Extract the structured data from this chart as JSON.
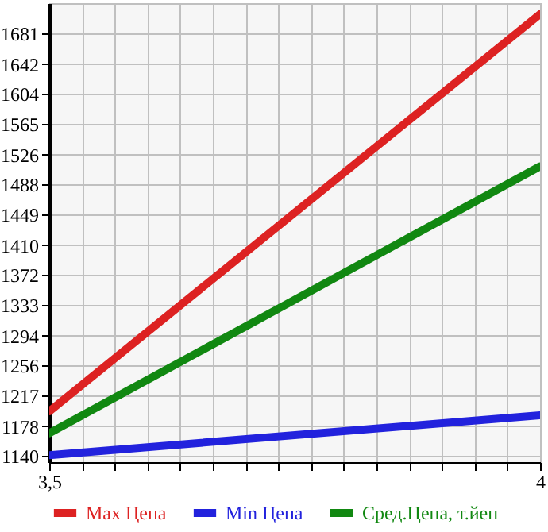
{
  "chart_data": {
    "type": "line",
    "x": [
      3.5,
      4
    ],
    "series": [
      {
        "name": "Max Цена",
        "color": "#dd2222",
        "values": [
          1197,
          1706
        ]
      },
      {
        "name": "Min Цена",
        "color": "#2222dd",
        "values": [
          1141,
          1192
        ]
      },
      {
        "name": "Сред.Цена, т.йен",
        "color": "#118811",
        "values": [
          1169,
          1511
        ]
      }
    ],
    "xlim": [
      3.5,
      4
    ],
    "xticks": [
      {
        "value": 3.5,
        "label": "3,5"
      },
      {
        "value": 3.5333,
        "label": null
      },
      {
        "value": 3.5667,
        "label": null
      },
      {
        "value": 3.6,
        "label": null
      },
      {
        "value": 3.6333,
        "label": null
      },
      {
        "value": 3.6667,
        "label": null
      },
      {
        "value": 3.7,
        "label": null
      },
      {
        "value": 3.7333,
        "label": null
      },
      {
        "value": 3.7667,
        "label": null
      },
      {
        "value": 3.8,
        "label": null
      },
      {
        "value": 3.8333,
        "label": null
      },
      {
        "value": 3.8667,
        "label": null
      },
      {
        "value": 3.9,
        "label": null
      },
      {
        "value": 3.9333,
        "label": null
      },
      {
        "value": 3.9667,
        "label": null
      },
      {
        "value": 4,
        "label": "4"
      }
    ],
    "ylim": [
      1132,
      1720
    ],
    "yticks": [
      1140,
      1178,
      1217,
      1256,
      1294,
      1333,
      1372,
      1410,
      1449,
      1488,
      1526,
      1565,
      1604,
      1642,
      1681
    ],
    "grid": true,
    "legend": "bottom",
    "marker": "none",
    "line_style": "solid"
  }
}
